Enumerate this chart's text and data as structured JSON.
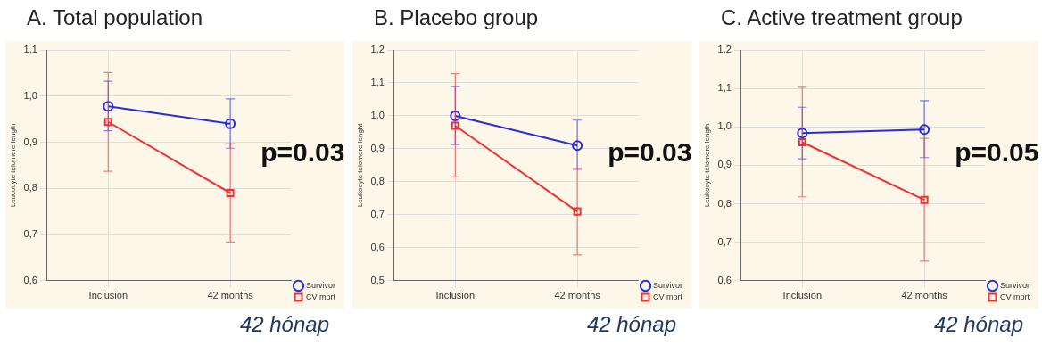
{
  "chart_data": [
    {
      "type": "line",
      "title": "A.   Total population",
      "ylabel": "Leucocyte telomere length",
      "categories": [
        "Inclusion",
        "42 months"
      ],
      "ylim": [
        0.6,
        1.1
      ],
      "yticks": [
        {
          "value": 0.6,
          "label": "0,6"
        },
        {
          "value": 0.7,
          "label": "0,7"
        },
        {
          "value": 0.8,
          "label": "0,8"
        },
        {
          "value": 0.9,
          "label": "0,9"
        },
        {
          "value": 1.0,
          "label": "1,0"
        },
        {
          "value": 1.1,
          "label": "1,1"
        }
      ],
      "grid": true,
      "legend": "bottom right",
      "annotations": [
        "p=0.03",
        "42 hónap"
      ],
      "series": [
        {
          "name": "Survivor",
          "color": "#2b2bdc",
          "marker": "circle",
          "values": [
            0.978,
            0.94
          ],
          "errors": [
            [
              0.925,
              1.032
            ],
            [
              0.887,
              0.994
            ]
          ]
        },
        {
          "name": "CV mort",
          "color": "#f03232",
          "marker": "square",
          "values": [
            0.944,
            0.79
          ],
          "errors": [
            [
              0.837,
              1.051
            ],
            [
              0.684,
              0.897
            ]
          ]
        }
      ]
    },
    {
      "type": "line",
      "title": "B. Placebo group",
      "ylabel": "Leukocyte telomere lenght",
      "categories": [
        "Inclusion",
        "42 months"
      ],
      "ylim": [
        0.5,
        1.2
      ],
      "yticks": [
        {
          "value": 0.5,
          "label": "0,5"
        },
        {
          "value": 0.6,
          "label": "0,6"
        },
        {
          "value": 0.7,
          "label": "0,7"
        },
        {
          "value": 0.8,
          "label": "0,8"
        },
        {
          "value": 0.9,
          "label": "0,9"
        },
        {
          "value": 1.0,
          "label": "1,0"
        },
        {
          "value": 1.1,
          "label": "1,1"
        },
        {
          "value": 1.2,
          "label": "1,2"
        }
      ],
      "grid": true,
      "legend": "bottom right",
      "annotations": [
        "p=0.03",
        "42 hónap"
      ],
      "series": [
        {
          "name": "Survivor",
          "color": "#2b2bdc",
          "marker": "circle",
          "values": [
            1.0,
            0.91
          ],
          "errors": [
            [
              0.913,
              1.089
            ],
            [
              0.838,
              0.987
            ]
          ]
        },
        {
          "name": "CV mort",
          "color": "#f03232",
          "marker": "square",
          "values": [
            0.97,
            0.71
          ],
          "errors": [
            [
              0.815,
              1.128
            ],
            [
              0.578,
              0.841
            ]
          ]
        }
      ]
    },
    {
      "type": "line",
      "title": "C. Active treatment group",
      "ylabel": "Leukocyte telomere length",
      "categories": [
        "Inclusion",
        "42 months"
      ],
      "ylim": [
        0.6,
        1.2
      ],
      "yticks": [
        {
          "value": 0.6,
          "label": "0,6"
        },
        {
          "value": 0.7,
          "label": "0,7"
        },
        {
          "value": 0.8,
          "label": "0,8"
        },
        {
          "value": 0.9,
          "label": "0,9"
        },
        {
          "value": 1.0,
          "label": "1,0"
        },
        {
          "value": 1.1,
          "label": "1,1"
        },
        {
          "value": 1.2,
          "label": "1,2"
        }
      ],
      "grid": true,
      "legend": "bottom right",
      "annotations": [
        "p=0.05",
        "42 hónap"
      ],
      "series": [
        {
          "name": "Survivor",
          "color": "#2b2bdc",
          "marker": "circle",
          "values": [
            0.984,
            0.993
          ],
          "errors": [
            [
              0.917,
              1.051
            ],
            [
              0.92,
              1.068
            ]
          ]
        },
        {
          "name": "CV mort",
          "color": "#f03232",
          "marker": "square",
          "values": [
            0.96,
            0.81
          ],
          "errors": [
            [
              0.818,
              1.103
            ],
            [
              0.651,
              0.97
            ]
          ]
        }
      ]
    }
  ]
}
